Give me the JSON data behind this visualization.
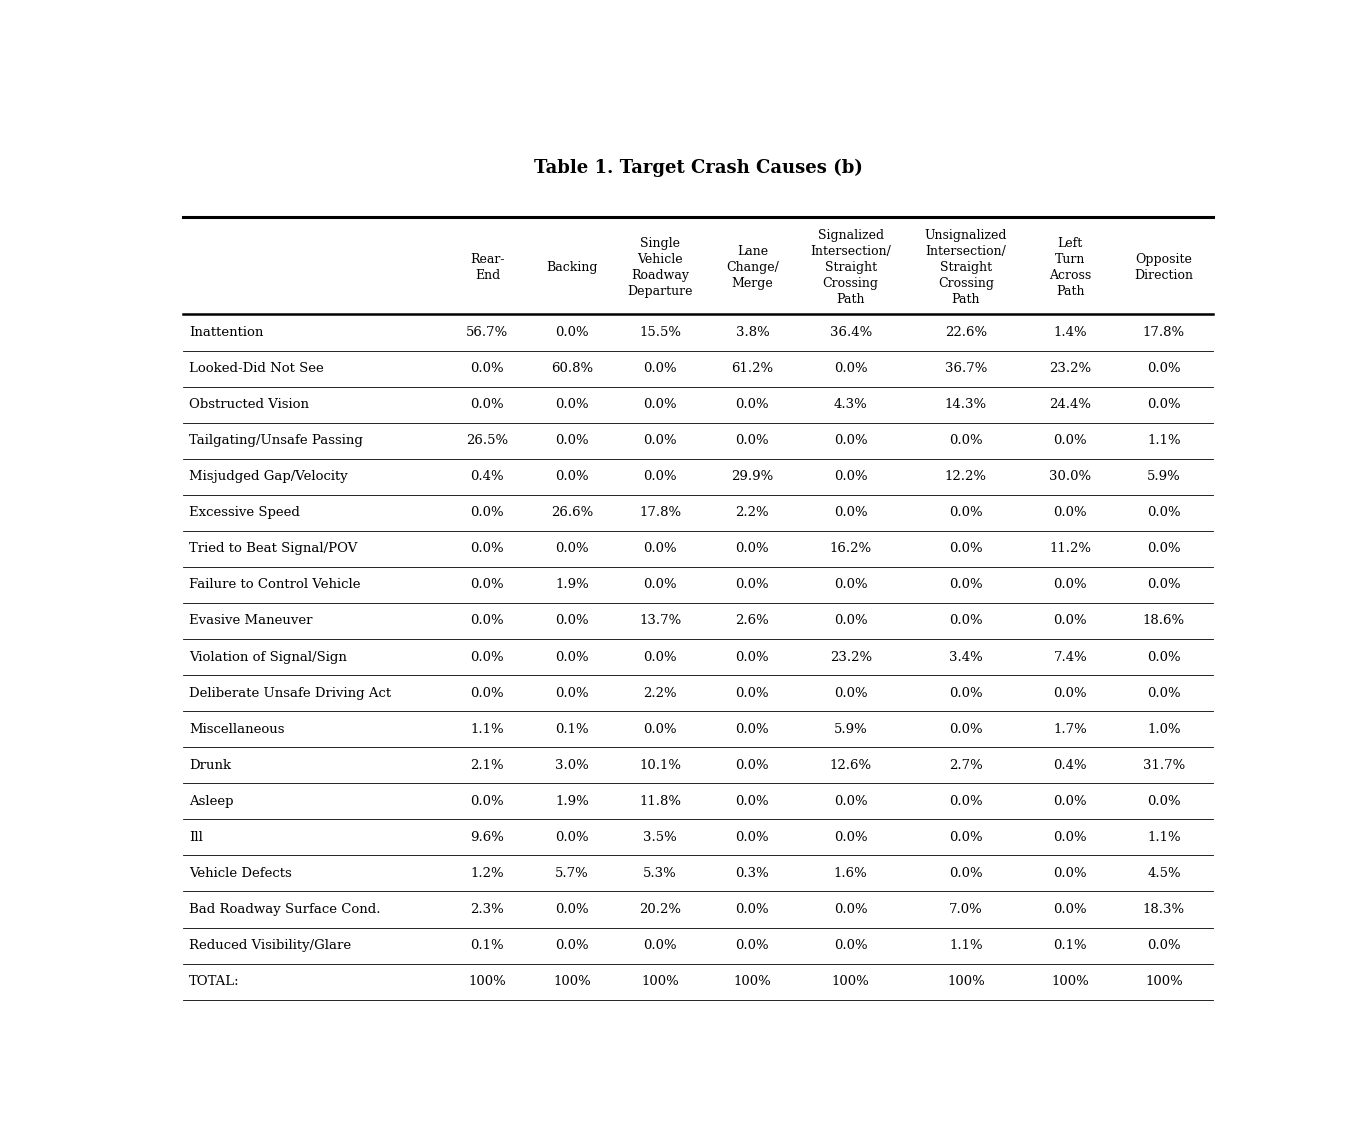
{
  "title": "Table 1. Target Crash Causes (b)",
  "col_headers": [
    "Rear-\nEnd",
    "Backing",
    "Single\nVehicle\nRoadway\nDeparture",
    "Lane\nChange/\nMerge",
    "Signalized\nIntersection/\nStraight\nCrossing\nPath",
    "Unsignalized\nIntersection/\nStraight\nCrossing\nPath",
    "Left\nTurn\nAcross\nPath",
    "Opposite\nDirection"
  ],
  "row_labels": [
    "Inattention",
    "Looked-Did Not See",
    "Obstructed Vision",
    "Tailgating/Unsafe Passing",
    "Misjudged Gap/Velocity",
    "Excessive Speed",
    "Tried to Beat Signal/POV",
    "Failure to Control Vehicle",
    "Evasive Maneuver",
    "Violation of Signal/Sign",
    "Deliberate Unsafe Driving Act",
    "Miscellaneous",
    "Drunk",
    "Asleep",
    "Ill",
    "Vehicle Defects",
    "Bad Roadway Surface Cond.",
    "Reduced Visibility/Glare",
    "TOTAL:"
  ],
  "table_data": [
    [
      "56.7%",
      "0.0%",
      "15.5%",
      "3.8%",
      "36.4%",
      "22.6%",
      "1.4%",
      "17.8%"
    ],
    [
      "0.0%",
      "60.8%",
      "0.0%",
      "61.2%",
      "0.0%",
      "36.7%",
      "23.2%",
      "0.0%"
    ],
    [
      "0.0%",
      "0.0%",
      "0.0%",
      "0.0%",
      "4.3%",
      "14.3%",
      "24.4%",
      "0.0%"
    ],
    [
      "26.5%",
      "0.0%",
      "0.0%",
      "0.0%",
      "0.0%",
      "0.0%",
      "0.0%",
      "1.1%"
    ],
    [
      "0.4%",
      "0.0%",
      "0.0%",
      "29.9%",
      "0.0%",
      "12.2%",
      "30.0%",
      "5.9%"
    ],
    [
      "0.0%",
      "26.6%",
      "17.8%",
      "2.2%",
      "0.0%",
      "0.0%",
      "0.0%",
      "0.0%"
    ],
    [
      "0.0%",
      "0.0%",
      "0.0%",
      "0.0%",
      "16.2%",
      "0.0%",
      "11.2%",
      "0.0%"
    ],
    [
      "0.0%",
      "1.9%",
      "0.0%",
      "0.0%",
      "0.0%",
      "0.0%",
      "0.0%",
      "0.0%"
    ],
    [
      "0.0%",
      "0.0%",
      "13.7%",
      "2.6%",
      "0.0%",
      "0.0%",
      "0.0%",
      "18.6%"
    ],
    [
      "0.0%",
      "0.0%",
      "0.0%",
      "0.0%",
      "23.2%",
      "3.4%",
      "7.4%",
      "0.0%"
    ],
    [
      "0.0%",
      "0.0%",
      "2.2%",
      "0.0%",
      "0.0%",
      "0.0%",
      "0.0%",
      "0.0%"
    ],
    [
      "1.1%",
      "0.1%",
      "0.0%",
      "0.0%",
      "5.9%",
      "0.0%",
      "1.7%",
      "1.0%"
    ],
    [
      "2.1%",
      "3.0%",
      "10.1%",
      "0.0%",
      "12.6%",
      "2.7%",
      "0.4%",
      "31.7%"
    ],
    [
      "0.0%",
      "1.9%",
      "11.8%",
      "0.0%",
      "0.0%",
      "0.0%",
      "0.0%",
      "0.0%"
    ],
    [
      "9.6%",
      "0.0%",
      "3.5%",
      "0.0%",
      "0.0%",
      "0.0%",
      "0.0%",
      "1.1%"
    ],
    [
      "1.2%",
      "5.7%",
      "5.3%",
      "0.3%",
      "1.6%",
      "0.0%",
      "0.0%",
      "4.5%"
    ],
    [
      "2.3%",
      "0.0%",
      "20.2%",
      "0.0%",
      "0.0%",
      "7.0%",
      "0.0%",
      "18.3%"
    ],
    [
      "0.1%",
      "0.0%",
      "0.0%",
      "0.0%",
      "0.0%",
      "1.1%",
      "0.1%",
      "0.0%"
    ],
    [
      "100%",
      "100%",
      "100%",
      "100%",
      "100%",
      "100%",
      "100%",
      "100%"
    ]
  ],
  "bg_color": "#ffffff",
  "text_color": "#000000",
  "line_color": "#000000",
  "title_fontsize": 13,
  "header_fontsize": 9,
  "cell_fontsize": 9.5,
  "row_label_fontsize": 9.5
}
